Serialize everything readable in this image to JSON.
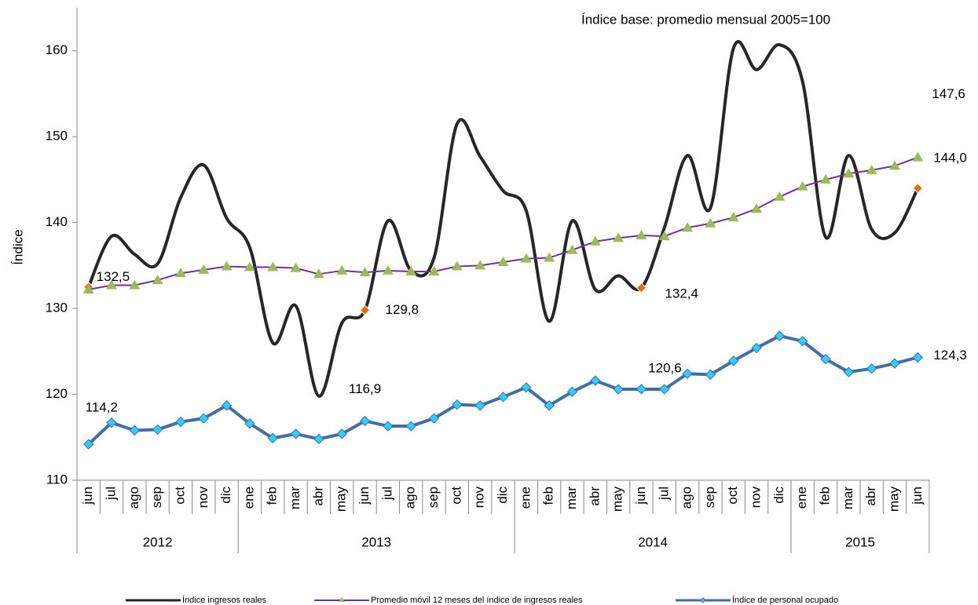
{
  "chart_data": {
    "type": "line",
    "annotation": "Índice base: promedio  mensual 2005=100",
    "y_label": "Índice",
    "categories": [
      "jun",
      "jul",
      "ago",
      "sep",
      "oct",
      "nov",
      "dic",
      "ene",
      "feb",
      "mar",
      "abr",
      "may",
      "jun",
      "jul",
      "ago",
      "sep",
      "oct",
      "nov",
      "dic",
      "ene",
      "feb",
      "mar",
      "abr",
      "may",
      "jun",
      "jul",
      "ago",
      "sep",
      "oct",
      "nov",
      "dic",
      "ene",
      "feb",
      "mar",
      "abr",
      "may",
      "jun"
    ],
    "year_labels": [
      "2012",
      null,
      null,
      null,
      null,
      null,
      null,
      "2013",
      null,
      null,
      null,
      null,
      null,
      null,
      null,
      null,
      null,
      null,
      null,
      "2014",
      null,
      null,
      null,
      null,
      null,
      null,
      null,
      null,
      null,
      null,
      null,
      "2015",
      null,
      null,
      null,
      null,
      null
    ],
    "ylim": [
      110,
      165
    ],
    "yticks": [
      110,
      120,
      130,
      140,
      150,
      160
    ],
    "grid": false,
    "series": [
      {
        "name": "Índice ingresos reales",
        "color": "#262626",
        "smooth": true,
        "highlight_color": "#e36c0a",
        "values": [
          132.5,
          138.4,
          136.3,
          135.2,
          142.9,
          146.7,
          140.5,
          137.1,
          126.0,
          130.3,
          119.8,
          128.3,
          129.8,
          140.2,
          134.4,
          135.9,
          151.5,
          147.7,
          143.7,
          141.4,
          128.5,
          140.2,
          132.2,
          133.8,
          132.4,
          139.4,
          147.8,
          141.7,
          160.3,
          157.8,
          160.7,
          156.4,
          138.3,
          147.8,
          139.2,
          138.8,
          144.0
        ],
        "value_labels": [
          "132,5",
          null,
          null,
          null,
          null,
          null,
          null,
          null,
          null,
          null,
          null,
          null,
          "129,8",
          null,
          null,
          null,
          null,
          null,
          null,
          null,
          null,
          null,
          null,
          null,
          "132,4",
          null,
          null,
          null,
          null,
          null,
          null,
          null,
          null,
          null,
          null,
          null,
          "144,0"
        ]
      },
      {
        "name": "Promedio móvil 12 meses del índice de ingresos reales",
        "color": "#7030a0",
        "marker_color": "#9bbb59",
        "marker": "triangle",
        "values": [
          132.2,
          132.7,
          132.7,
          133.3,
          134.1,
          134.5,
          134.9,
          134.8,
          134.8,
          134.7,
          134.0,
          134.4,
          134.2,
          134.4,
          134.3,
          134.3,
          134.9,
          135.0,
          135.4,
          135.8,
          135.9,
          136.8,
          137.8,
          138.2,
          138.5,
          138.4,
          139.4,
          139.9,
          140.6,
          141.6,
          143.0,
          144.2,
          145.0,
          145.7,
          146.1,
          146.6,
          147.6
        ],
        "value_labels": [
          null,
          null,
          null,
          null,
          null,
          null,
          null,
          null,
          null,
          null,
          null,
          null,
          null,
          null,
          null,
          null,
          null,
          null,
          null,
          null,
          null,
          null,
          null,
          null,
          null,
          null,
          null,
          null,
          null,
          null,
          null,
          null,
          null,
          null,
          null,
          null,
          "147,6"
        ]
      },
      {
        "name": "Índice de personal ocupado",
        "color": "#3f6ea8",
        "marker_color": "#33ccff",
        "marker": "diamond",
        "values": [
          114.2,
          116.7,
          115.8,
          115.9,
          116.8,
          117.2,
          118.7,
          116.6,
          114.9,
          115.4,
          114.8,
          115.4,
          116.9,
          116.3,
          116.3,
          117.2,
          118.8,
          118.7,
          119.7,
          120.8,
          118.7,
          120.3,
          121.6,
          120.6,
          120.6,
          120.6,
          122.4,
          122.3,
          123.9,
          125.4,
          126.8,
          126.2,
          124.1,
          122.6,
          123.0,
          123.6,
          124.3
        ],
        "value_labels": [
          "114,2",
          null,
          null,
          null,
          null,
          null,
          null,
          null,
          null,
          null,
          null,
          null,
          "116,9",
          null,
          null,
          null,
          null,
          null,
          null,
          null,
          null,
          null,
          null,
          null,
          "120,6",
          null,
          null,
          null,
          null,
          null,
          null,
          null,
          null,
          null,
          null,
          null,
          "124,3"
        ]
      }
    ]
  }
}
